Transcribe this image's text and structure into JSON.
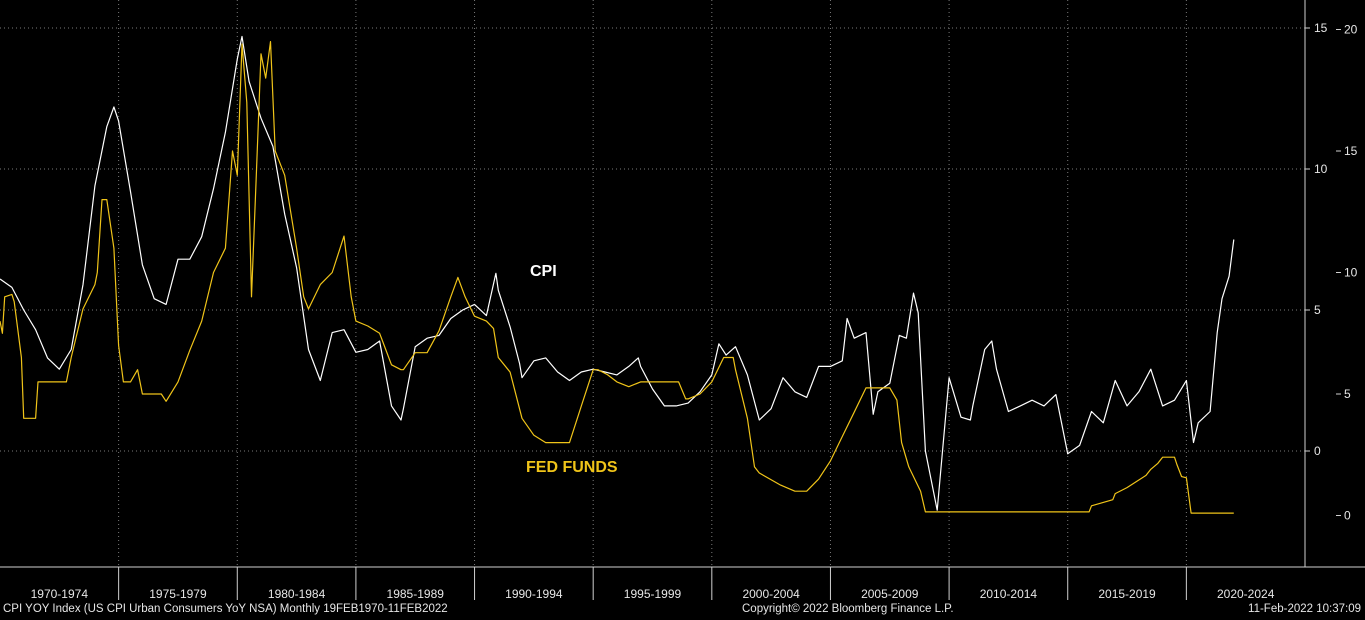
{
  "colors": {
    "background": "#000000",
    "cpi": "#ffffff",
    "fed_funds": "#f0c419",
    "grid": "#7a7a7a",
    "axis": "#d0d0d0"
  },
  "footer": {
    "left": "CPI YOY Index (US CPI Urban Consumers YoY NSA)  Monthly 19FEB1970-11FEB2022",
    "center": "Copyright© 2022 Bloomberg Finance L.P.",
    "right": "11-Feb-2022 10:37:09"
  },
  "chart_data": {
    "type": "line",
    "title": "",
    "grid": "dotted",
    "xlim": [
      1970.0,
      2025.0
    ],
    "x_tick_labels": [
      "1970-1974",
      "1975-1979",
      "1980-1984",
      "1985-1989",
      "1990-1994",
      "1995-1999",
      "2000-2004",
      "2005-2009",
      "2010-2014",
      "2015-2019",
      "2020-2024"
    ],
    "y_axis_inner": {
      "side": "right",
      "ticks": [
        0,
        5,
        10,
        15
      ]
    },
    "y_axis_outer": {
      "side": "right",
      "ticks": [
        0,
        5,
        10,
        15,
        20
      ]
    },
    "annotations": [
      {
        "text": "CPI",
        "series": "CPI"
      },
      {
        "text": "FED FUNDS",
        "series": "FED FUNDS"
      }
    ],
    "series": [
      {
        "name": "CPI",
        "axis": "inner",
        "points": [
          [
            1970.0,
            6.1
          ],
          [
            1970.5,
            5.8
          ],
          [
            1971.0,
            5.0
          ],
          [
            1971.5,
            4.3
          ],
          [
            1972.0,
            3.3
          ],
          [
            1972.5,
            2.9
          ],
          [
            1973.0,
            3.6
          ],
          [
            1973.5,
            5.9
          ],
          [
            1974.0,
            9.4
          ],
          [
            1974.5,
            11.5
          ],
          [
            1974.8,
            12.2
          ],
          [
            1975.0,
            11.7
          ],
          [
            1975.5,
            9.2
          ],
          [
            1976.0,
            6.6
          ],
          [
            1976.5,
            5.4
          ],
          [
            1977.0,
            5.2
          ],
          [
            1977.5,
            6.8
          ],
          [
            1978.0,
            6.8
          ],
          [
            1978.5,
            7.6
          ],
          [
            1979.0,
            9.3
          ],
          [
            1979.5,
            11.3
          ],
          [
            1980.0,
            13.9
          ],
          [
            1980.2,
            14.7
          ],
          [
            1980.5,
            13.1
          ],
          [
            1981.0,
            11.8
          ],
          [
            1981.5,
            10.8
          ],
          [
            1982.0,
            8.4
          ],
          [
            1982.5,
            6.5
          ],
          [
            1983.0,
            3.6
          ],
          [
            1983.5,
            2.5
          ],
          [
            1984.0,
            4.2
          ],
          [
            1984.5,
            4.3
          ],
          [
            1985.0,
            3.5
          ],
          [
            1985.5,
            3.6
          ],
          [
            1986.0,
            3.9
          ],
          [
            1986.5,
            1.6
          ],
          [
            1986.9,
            1.1
          ],
          [
            1987.0,
            1.5
          ],
          [
            1987.5,
            3.7
          ],
          [
            1988.0,
            4.0
          ],
          [
            1988.5,
            4.1
          ],
          [
            1989.0,
            4.7
          ],
          [
            1989.5,
            5.0
          ],
          [
            1990.0,
            5.2
          ],
          [
            1990.5,
            4.8
          ],
          [
            1990.9,
            6.3
          ],
          [
            1991.0,
            5.7
          ],
          [
            1991.5,
            4.4
          ],
          [
            1991.9,
            3.1
          ],
          [
            1992.0,
            2.6
          ],
          [
            1992.5,
            3.2
          ],
          [
            1993.0,
            3.3
          ],
          [
            1993.5,
            2.8
          ],
          [
            1994.0,
            2.5
          ],
          [
            1994.5,
            2.8
          ],
          [
            1995.0,
            2.9
          ],
          [
            1995.5,
            2.8
          ],
          [
            1996.0,
            2.7
          ],
          [
            1996.5,
            3.0
          ],
          [
            1996.9,
            3.3
          ],
          [
            1997.0,
            3.0
          ],
          [
            1997.5,
            2.2
          ],
          [
            1998.0,
            1.6
          ],
          [
            1998.5,
            1.6
          ],
          [
            1999.0,
            1.7
          ],
          [
            1999.5,
            2.1
          ],
          [
            2000.0,
            2.7
          ],
          [
            2000.3,
            3.8
          ],
          [
            2000.6,
            3.4
          ],
          [
            2001.0,
            3.7
          ],
          [
            2001.5,
            2.7
          ],
          [
            2002.0,
            1.1
          ],
          [
            2002.5,
            1.5
          ],
          [
            2003.0,
            2.6
          ],
          [
            2003.5,
            2.1
          ],
          [
            2004.0,
            1.9
          ],
          [
            2004.5,
            3.0
          ],
          [
            2005.0,
            3.0
          ],
          [
            2005.5,
            3.2
          ],
          [
            2005.7,
            4.7
          ],
          [
            2006.0,
            4.0
          ],
          [
            2006.5,
            4.2
          ],
          [
            2006.8,
            1.3
          ],
          [
            2007.0,
            2.1
          ],
          [
            2007.5,
            2.4
          ],
          [
            2007.9,
            4.1
          ],
          [
            2008.2,
            4.0
          ],
          [
            2008.5,
            5.6
          ],
          [
            2008.7,
            4.9
          ],
          [
            2009.0,
            0.0
          ],
          [
            2009.5,
            -2.1
          ],
          [
            2010.0,
            2.6
          ],
          [
            2010.5,
            1.2
          ],
          [
            2010.9,
            1.1
          ],
          [
            2011.0,
            1.6
          ],
          [
            2011.5,
            3.6
          ],
          [
            2011.8,
            3.9
          ],
          [
            2012.0,
            2.9
          ],
          [
            2012.5,
            1.4
          ],
          [
            2013.0,
            1.6
          ],
          [
            2013.5,
            1.8
          ],
          [
            2014.0,
            1.6
          ],
          [
            2014.5,
            2.0
          ],
          [
            2015.0,
            -0.1
          ],
          [
            2015.5,
            0.2
          ],
          [
            2016.0,
            1.4
          ],
          [
            2016.5,
            1.0
          ],
          [
            2017.0,
            2.5
          ],
          [
            2017.5,
            1.6
          ],
          [
            2018.0,
            2.1
          ],
          [
            2018.5,
            2.9
          ],
          [
            2019.0,
            1.6
          ],
          [
            2019.5,
            1.8
          ],
          [
            2020.0,
            2.5
          ],
          [
            2020.3,
            0.3
          ],
          [
            2020.5,
            1.0
          ],
          [
            2021.0,
            1.4
          ],
          [
            2021.3,
            4.2
          ],
          [
            2021.5,
            5.4
          ],
          [
            2021.8,
            6.2
          ],
          [
            2022.0,
            7.5
          ]
        ]
      },
      {
        "name": "FED FUNDS",
        "axis": "outer",
        "points": [
          [
            1970.0,
            8.0
          ],
          [
            1970.1,
            7.5
          ],
          [
            1970.2,
            9.0
          ],
          [
            1970.5,
            9.1
          ],
          [
            1970.6,
            8.8
          ],
          [
            1970.9,
            6.5
          ],
          [
            1971.0,
            4.0
          ],
          [
            1971.5,
            4.0
          ],
          [
            1971.6,
            5.5
          ],
          [
            1972.0,
            5.5
          ],
          [
            1972.5,
            5.5
          ],
          [
            1972.8,
            5.5
          ],
          [
            1973.0,
            6.5
          ],
          [
            1973.5,
            8.5
          ],
          [
            1974.0,
            9.5
          ],
          [
            1974.1,
            10.0
          ],
          [
            1974.3,
            13.0
          ],
          [
            1974.5,
            13.0
          ],
          [
            1974.8,
            11.0
          ],
          [
            1975.0,
            7.0
          ],
          [
            1975.2,
            5.5
          ],
          [
            1975.5,
            5.5
          ],
          [
            1975.8,
            6.0
          ],
          [
            1976.0,
            5.0
          ],
          [
            1976.5,
            5.0
          ],
          [
            1976.8,
            5.0
          ],
          [
            1977.0,
            4.7
          ],
          [
            1977.5,
            5.5
          ],
          [
            1978.0,
            6.8
          ],
          [
            1978.5,
            8.0
          ],
          [
            1979.0,
            10.0
          ],
          [
            1979.5,
            11.0
          ],
          [
            1979.8,
            15.0
          ],
          [
            1980.0,
            14.0
          ],
          [
            1980.2,
            19.4
          ],
          [
            1980.4,
            17.0
          ],
          [
            1980.6,
            9.0
          ],
          [
            1980.8,
            14.0
          ],
          [
            1981.0,
            19.0
          ],
          [
            1981.2,
            18.0
          ],
          [
            1981.4,
            19.5
          ],
          [
            1981.6,
            15.0
          ],
          [
            1982.0,
            14.0
          ],
          [
            1982.5,
            11.0
          ],
          [
            1982.8,
            9.0
          ],
          [
            1983.0,
            8.5
          ],
          [
            1983.5,
            9.5
          ],
          [
            1984.0,
            10.0
          ],
          [
            1984.5,
            11.5
          ],
          [
            1984.8,
            9.0
          ],
          [
            1985.0,
            8.0
          ],
          [
            1985.5,
            7.8
          ],
          [
            1986.0,
            7.5
          ],
          [
            1986.5,
            6.2
          ],
          [
            1986.9,
            6.0
          ],
          [
            1987.0,
            6.0
          ],
          [
            1987.5,
            6.7
          ],
          [
            1988.0,
            6.7
          ],
          [
            1988.5,
            7.6
          ],
          [
            1989.0,
            9.0
          ],
          [
            1989.3,
            9.8
          ],
          [
            1989.6,
            9.0
          ],
          [
            1990.0,
            8.2
          ],
          [
            1990.5,
            8.0
          ],
          [
            1990.8,
            7.7
          ],
          [
            1991.0,
            6.5
          ],
          [
            1991.5,
            5.9
          ],
          [
            1992.0,
            4.0
          ],
          [
            1992.5,
            3.3
          ],
          [
            1993.0,
            3.0
          ],
          [
            1993.5,
            3.0
          ],
          [
            1994.0,
            3.0
          ],
          [
            1994.5,
            4.5
          ],
          [
            1995.0,
            6.0
          ],
          [
            1995.2,
            6.0
          ],
          [
            1995.6,
            5.8
          ],
          [
            1996.0,
            5.5
          ],
          [
            1996.5,
            5.3
          ],
          [
            1997.0,
            5.5
          ],
          [
            1997.5,
            5.5
          ],
          [
            1998.0,
            5.5
          ],
          [
            1998.6,
            5.5
          ],
          [
            1998.9,
            4.8
          ],
          [
            1999.0,
            4.8
          ],
          [
            1999.5,
            5.0
          ],
          [
            2000.0,
            5.5
          ],
          [
            2000.5,
            6.5
          ],
          [
            2000.9,
            6.5
          ],
          [
            2001.0,
            6.0
          ],
          [
            2001.5,
            4.0
          ],
          [
            2001.8,
            2.0
          ],
          [
            2002.0,
            1.75
          ],
          [
            2002.9,
            1.25
          ],
          [
            2003.5,
            1.0
          ],
          [
            2004.0,
            1.0
          ],
          [
            2004.5,
            1.5
          ],
          [
            2005.0,
            2.25
          ],
          [
            2005.5,
            3.25
          ],
          [
            2006.0,
            4.25
          ],
          [
            2006.5,
            5.25
          ],
          [
            2007.0,
            5.25
          ],
          [
            2007.5,
            5.25
          ],
          [
            2007.8,
            4.75
          ],
          [
            2008.0,
            3.0
          ],
          [
            2008.3,
            2.0
          ],
          [
            2008.8,
            1.0
          ],
          [
            2009.0,
            0.15
          ],
          [
            2010.0,
            0.15
          ],
          [
            2011.0,
            0.15
          ],
          [
            2012.0,
            0.15
          ],
          [
            2013.0,
            0.15
          ],
          [
            2014.0,
            0.15
          ],
          [
            2015.0,
            0.15
          ],
          [
            2015.9,
            0.15
          ],
          [
            2016.0,
            0.4
          ],
          [
            2016.9,
            0.65
          ],
          [
            2017.0,
            0.9
          ],
          [
            2017.5,
            1.15
          ],
          [
            2017.9,
            1.4
          ],
          [
            2018.3,
            1.65
          ],
          [
            2018.5,
            1.9
          ],
          [
            2018.8,
            2.15
          ],
          [
            2019.0,
            2.4
          ],
          [
            2019.5,
            2.4
          ],
          [
            2019.6,
            2.1
          ],
          [
            2019.8,
            1.6
          ],
          [
            2020.0,
            1.55
          ],
          [
            2020.2,
            0.1
          ],
          [
            2021.0,
            0.1
          ],
          [
            2022.0,
            0.1
          ]
        ]
      }
    ]
  }
}
